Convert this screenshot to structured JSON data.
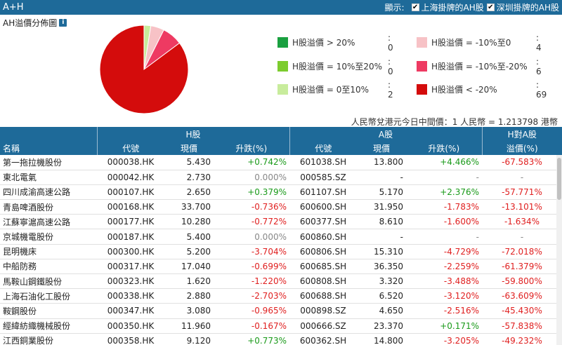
{
  "header": {
    "title": "A+H",
    "display_label": "顯示:",
    "opt_sh": "上海掛牌的AH股",
    "opt_sz": "深圳掛牌的AH股"
  },
  "pie_title": "AH溢價分佈圖",
  "chart_data": {
    "type": "pie",
    "title": "AH溢價分佈圖",
    "slices": [
      {
        "name": "H股溢價 > 20%",
        "value": 0,
        "color": "#1aa040"
      },
      {
        "name": "H股溢價 = 10%至20%",
        "value": 0,
        "color": "#7ccc2e"
      },
      {
        "name": "H股溢價 = 0至10%",
        "value": 2,
        "color": "#c8ec9c"
      },
      {
        "name": "H股溢價 = -10%至0",
        "value": 4,
        "color": "#f7c2c6"
      },
      {
        "name": "H股溢價 = -10%至-20%",
        "value": 6,
        "color": "#ee3a62"
      },
      {
        "name": "H股溢價 < -20%",
        "value": 69,
        "color": "#d40c0c"
      }
    ]
  },
  "legend": [
    {
      "label": "H股溢價 > 20%",
      "count": ": 0"
    },
    {
      "label": "H股溢價 = 10%至20%",
      "count": ": 0"
    },
    {
      "label": "H股溢價 = 0至10%",
      "count": ": 2"
    },
    {
      "label": "H股溢價 = -10%至0",
      "count": ": 4"
    },
    {
      "label": "H股溢價 = -10%至-20%",
      "count": ": 6"
    },
    {
      "label": "H股溢價 < -20%",
      "count": ": 69"
    }
  ],
  "rate_text": "人民幣兌港元今日中間價：1 人民幣 = 1.213798 港幣",
  "table": {
    "group_h": "H股",
    "group_a": "A股",
    "group_ha": "H對A股",
    "col_name": "名稱",
    "col_code": "代號",
    "col_price": "現價",
    "col_change": "升跌(%)",
    "col_premium": "溢價(%)",
    "rows": [
      {
        "name": "第一拖拉機股份",
        "hcode": "000038.HK",
        "hprice": "5.430",
        "hchg": "+0.742%",
        "hd": "up",
        "acode": "601038.SH",
        "aprice": "13.800",
        "achg": "+4.466%",
        "ad": "up",
        "prem": "-67.583%",
        "pd": "down"
      },
      {
        "name": "東北電氣",
        "hcode": "000042.HK",
        "hprice": "2.730",
        "hchg": "0.000%",
        "hd": "flat",
        "acode": "000585.SZ",
        "aprice": "-",
        "achg": "-",
        "ad": "flat",
        "prem": "-",
        "pd": "flat"
      },
      {
        "name": "四川成渝高速公路",
        "hcode": "000107.HK",
        "hprice": "2.650",
        "hchg": "+0.379%",
        "hd": "up",
        "acode": "601107.SH",
        "aprice": "5.170",
        "achg": "+2.376%",
        "ad": "up",
        "prem": "-57.771%",
        "pd": "down"
      },
      {
        "name": "青島啤酒股份",
        "hcode": "000168.HK",
        "hprice": "33.700",
        "hchg": "-0.736%",
        "hd": "down",
        "acode": "600600.SH",
        "aprice": "31.950",
        "achg": "-1.783%",
        "ad": "down",
        "prem": "-13.101%",
        "pd": "down"
      },
      {
        "name": "江蘇寧滬高速公路",
        "hcode": "000177.HK",
        "hprice": "10.280",
        "hchg": "-0.772%",
        "hd": "down",
        "acode": "600377.SH",
        "aprice": "8.610",
        "achg": "-1.600%",
        "ad": "down",
        "prem": "-1.634%",
        "pd": "down"
      },
      {
        "name": "京城機電股份",
        "hcode": "000187.HK",
        "hprice": "5.400",
        "hchg": "0.000%",
        "hd": "flat",
        "acode": "600860.SH",
        "aprice": "-",
        "achg": "-",
        "ad": "flat",
        "prem": "-",
        "pd": "flat"
      },
      {
        "name": "昆明機床",
        "hcode": "000300.HK",
        "hprice": "5.200",
        "hchg": "-3.704%",
        "hd": "down",
        "acode": "600806.SH",
        "aprice": "15.310",
        "achg": "-4.729%",
        "ad": "down",
        "prem": "-72.018%",
        "pd": "down"
      },
      {
        "name": "中船防務",
        "hcode": "000317.HK",
        "hprice": "17.040",
        "hchg": "-0.699%",
        "hd": "down",
        "acode": "600685.SH",
        "aprice": "36.350",
        "achg": "-2.259%",
        "ad": "down",
        "prem": "-61.379%",
        "pd": "down"
      },
      {
        "name": "馬鞍山鋼鐵股份",
        "hcode": "000323.HK",
        "hprice": "1.620",
        "hchg": "-1.220%",
        "hd": "down",
        "acode": "600808.SH",
        "aprice": "3.320",
        "achg": "-3.488%",
        "ad": "down",
        "prem": "-59.800%",
        "pd": "down"
      },
      {
        "name": "上海石油化工股份",
        "hcode": "000338.HK",
        "hprice": "2.880",
        "hchg": "-2.703%",
        "hd": "down",
        "acode": "600688.SH",
        "aprice": "6.520",
        "achg": "-3.120%",
        "ad": "down",
        "prem": "-63.609%",
        "pd": "down"
      },
      {
        "name": "鞍鋼股份",
        "hcode": "000347.HK",
        "hprice": "3.080",
        "hchg": "-0.965%",
        "hd": "down",
        "acode": "000898.SZ",
        "aprice": "4.650",
        "achg": "-2.516%",
        "ad": "down",
        "prem": "-45.430%",
        "pd": "down"
      },
      {
        "name": "經緯紡織機械股份",
        "hcode": "000350.HK",
        "hprice": "11.960",
        "hchg": "-0.167%",
        "hd": "down",
        "acode": "000666.SZ",
        "aprice": "23.370",
        "achg": "+0.171%",
        "ad": "up",
        "prem": "-57.838%",
        "pd": "down"
      },
      {
        "name": "江西銅業股份",
        "hcode": "000358.HK",
        "hprice": "9.120",
        "hchg": "+0.773%",
        "hd": "up",
        "acode": "600362.SH",
        "aprice": "14.800",
        "achg": "-3.205%",
        "ad": "down",
        "prem": "-49.232%",
        "pd": "down"
      }
    ]
  }
}
